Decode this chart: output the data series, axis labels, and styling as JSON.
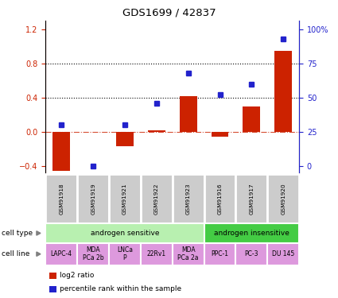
{
  "title": "GDS1699 / 42837",
  "samples": [
    "GSM91918",
    "GSM91919",
    "GSM91921",
    "GSM91922",
    "GSM91923",
    "GSM91916",
    "GSM91917",
    "GSM91920"
  ],
  "log2_ratio": [
    -0.46,
    0.0,
    -0.17,
    0.02,
    0.42,
    -0.06,
    0.3,
    0.95
  ],
  "percentile_rank": [
    30,
    0,
    30,
    46,
    68,
    52,
    60,
    93
  ],
  "cell_type_groups": [
    {
      "label": "androgen sensitive",
      "start": 0,
      "end": 5,
      "color": "#b8f0b0"
    },
    {
      "label": "androgen insensitive",
      "start": 5,
      "end": 8,
      "color": "#44cc44"
    }
  ],
  "cell_lines": [
    {
      "label": "LAPC-4",
      "start": 0,
      "end": 1
    },
    {
      "label": "MDA\nPCa 2b",
      "start": 1,
      "end": 2
    },
    {
      "label": "LNCa\nP",
      "start": 2,
      "end": 3
    },
    {
      "label": "22Rv1",
      "start": 3,
      "end": 4
    },
    {
      "label": "MDA\nPCa 2a",
      "start": 4,
      "end": 5
    },
    {
      "label": "PPC-1",
      "start": 5,
      "end": 6
    },
    {
      "label": "PC-3",
      "start": 6,
      "end": 7
    },
    {
      "label": "DU 145",
      "start": 7,
      "end": 8
    }
  ],
  "cell_line_color": "#dd99dd",
  "sample_box_color": "#cccccc",
  "bar_color": "#cc2200",
  "dot_color": "#2222cc",
  "ylim_left": [
    -0.5,
    1.3
  ],
  "ylim_right": [
    -12.5,
    112.5
  ],
  "yticks_left": [
    -0.4,
    0.0,
    0.4,
    0.8,
    1.2
  ],
  "yticks_right": [
    0,
    25,
    50,
    75,
    100
  ],
  "legend_items": [
    "log2 ratio",
    "percentile rank within the sample"
  ]
}
